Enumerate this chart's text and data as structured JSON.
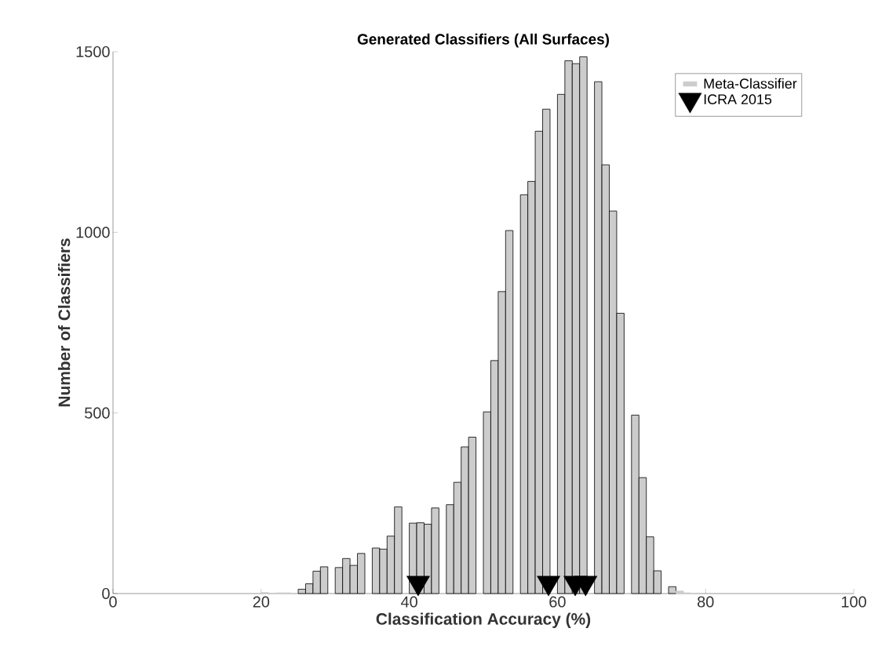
{
  "chart_data": {
    "type": "histogram",
    "title": "Generated Classifiers (All Surfaces)",
    "xlabel": "Classification Accuracy (%)",
    "ylabel": "Number of Classifiers",
    "bins": [
      20,
      21,
      22,
      23,
      24,
      25,
      26,
      27,
      28,
      29,
      30,
      31,
      32,
      33,
      34,
      35,
      36,
      37,
      38,
      39,
      40,
      41,
      42,
      43,
      44,
      45,
      46,
      47,
      48,
      49,
      50,
      51,
      52,
      53,
      54,
      55,
      56,
      57,
      58,
      59,
      60,
      61,
      62,
      63,
      64,
      65,
      66,
      67,
      68,
      69,
      70,
      71,
      72,
      73,
      74,
      75,
      76,
      77,
      78,
      79,
      80
    ],
    "xlim": [
      0,
      100
    ],
    "ylim": [
      0,
      1500
    ],
    "xticks": [
      0,
      20,
      40,
      60,
      80,
      100
    ],
    "yticks": [
      0,
      500,
      1000,
      1500
    ],
    "legend": "top right",
    "series": [
      {
        "name": "Meta-Classifier",
        "color": "#cccccc",
        "values": [
          3,
          0,
          2,
          2,
          0,
          12,
          27,
          62,
          74,
          0,
          72,
          97,
          78,
          111,
          0,
          126,
          123,
          159,
          240,
          0,
          195,
          196,
          192,
          237,
          0,
          246,
          308,
          406,
          433,
          0,
          503,
          645,
          836,
          1005,
          0,
          1104,
          1141,
          1280,
          1341,
          0,
          1382,
          1475,
          1467,
          1486,
          0,
          1417,
          1187,
          1059,
          776,
          0,
          494,
          321,
          157,
          63,
          0,
          19,
          7,
          2,
          1,
          0
        ]
      },
      {
        "name": "ICRA 2015",
        "type": "scatter",
        "marker": "triangle",
        "color": "#000000",
        "x": [
          41.2,
          58.8,
          62.4,
          63.8
        ],
        "values": [
          30,
          30,
          30,
          30
        ]
      }
    ]
  }
}
